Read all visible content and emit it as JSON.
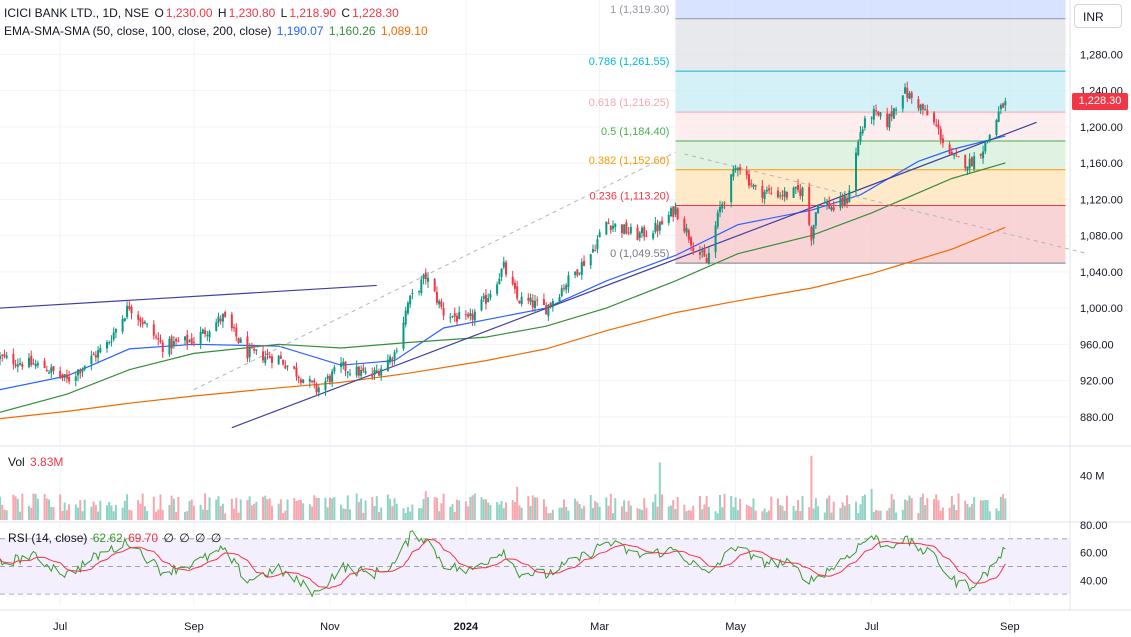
{
  "header": {
    "symbol": "ICICI BANK LTD., 1D, NSE",
    "open_label": "O",
    "open": "1,230.00",
    "high_label": "H",
    "high": "1,230.80",
    "low_label": "L",
    "low": "1,218.90",
    "close_label": "C",
    "close": "1,228.30",
    "indicator_name": "EMA-SMA-SMA (50, close, 100, close, 200, close)",
    "ma50": "1,190.07",
    "ma100": "1,160.26",
    "ma200": "1,089.10"
  },
  "currency": "INR",
  "last_price": "1,228.30",
  "volume_panel": {
    "label": "Vol",
    "value": "3.83M",
    "axis_label": "40 M"
  },
  "rsi_panel": {
    "label": "RSI (14, close)",
    "rsi": "62.62",
    "ma": "69.70",
    "placeholders": [
      "∅",
      "∅",
      "∅",
      "∅"
    ]
  },
  "colors": {
    "up": "#089981",
    "down": "#f23645",
    "ma50": "#2962ff",
    "ma100": "#388e3c",
    "ma200": "#ef6c00",
    "trend": "#3f3f9f",
    "rsi": "#3a9a2e",
    "rsi_ma": "#f23645"
  },
  "chart_data": {
    "type": "candlestick",
    "price_axis": {
      "range": [
        850,
        1340
      ],
      "ticks": [
        "880.00",
        "920.00",
        "960.00",
        "1,000.00",
        "1,040.00",
        "1,080.00",
        "1,120.00",
        "1,160.00",
        "1,200.00",
        "1,240.00",
        "1,280.00"
      ]
    },
    "time_axis": {
      "range": [
        "2023-06-06",
        "2024-09-28"
      ],
      "ticks": [
        {
          "label": "Jul",
          "date": "2023-07-03"
        },
        {
          "label": "Sep",
          "date": "2023-09-01"
        },
        {
          "label": "Nov",
          "date": "2023-11-01"
        },
        {
          "label": "2024",
          "date": "2024-01-01"
        },
        {
          "label": "Mar",
          "date": "2024-03-01"
        },
        {
          "label": "May",
          "date": "2024-05-01"
        },
        {
          "label": "Jul",
          "date": "2024-07-01"
        },
        {
          "label": "Sep",
          "date": "2024-09-01"
        }
      ]
    },
    "price_keypoints": [
      {
        "date": "2023-06-06",
        "close": 945
      },
      {
        "date": "2023-06-26",
        "close": 935
      },
      {
        "date": "2023-07-06",
        "close": 920
      },
      {
        "date": "2023-07-24",
        "close": 960
      },
      {
        "date": "2023-08-03",
        "close": 1003
      },
      {
        "date": "2023-08-18",
        "close": 958
      },
      {
        "date": "2023-09-01",
        "close": 965
      },
      {
        "date": "2023-09-14",
        "close": 990
      },
      {
        "date": "2023-09-25",
        "close": 950
      },
      {
        "date": "2023-10-09",
        "close": 945
      },
      {
        "date": "2023-10-26",
        "close": 910
      },
      {
        "date": "2023-11-06",
        "close": 935
      },
      {
        "date": "2023-11-20",
        "close": 925
      },
      {
        "date": "2023-11-30",
        "close": 950
      },
      {
        "date": "2023-12-06",
        "close": 1005
      },
      {
        "date": "2023-12-14",
        "close": 1035
      },
      {
        "date": "2023-12-22",
        "close": 995
      },
      {
        "date": "2024-01-02",
        "close": 985
      },
      {
        "date": "2024-01-10",
        "close": 1010
      },
      {
        "date": "2024-01-18",
        "close": 1045
      },
      {
        "date": "2024-01-24",
        "close": 1010
      },
      {
        "date": "2024-02-06",
        "close": 1000
      },
      {
        "date": "2024-02-14",
        "close": 1025
      },
      {
        "date": "2024-02-26",
        "close": 1060
      },
      {
        "date": "2024-03-04",
        "close": 1095
      },
      {
        "date": "2024-03-18",
        "close": 1080
      },
      {
        "date": "2024-03-28",
        "close": 1090
      },
      {
        "date": "2024-04-04",
        "close": 1110
      },
      {
        "date": "2024-04-12",
        "close": 1070
      },
      {
        "date": "2024-04-18",
        "close": 1050
      },
      {
        "date": "2024-04-24",
        "close": 1110
      },
      {
        "date": "2024-05-02",
        "close": 1160
      },
      {
        "date": "2024-05-10",
        "close": 1130
      },
      {
        "date": "2024-05-24",
        "close": 1125
      },
      {
        "date": "2024-05-31",
        "close": 1130
      },
      {
        "date": "2024-06-04",
        "close": 1080
      },
      {
        "date": "2024-06-07",
        "close": 1120
      },
      {
        "date": "2024-06-14",
        "close": 1110
      },
      {
        "date": "2024-06-20",
        "close": 1120
      },
      {
        "date": "2024-06-26",
        "close": 1195
      },
      {
        "date": "2024-07-01",
        "close": 1215
      },
      {
        "date": "2024-07-08",
        "close": 1205
      },
      {
        "date": "2024-07-15",
        "close": 1240
      },
      {
        "date": "2024-07-22",
        "close": 1225
      },
      {
        "date": "2024-07-30",
        "close": 1200
      },
      {
        "date": "2024-08-06",
        "close": 1165
      },
      {
        "date": "2024-08-14",
        "close": 1160
      },
      {
        "date": "2024-08-21",
        "close": 1180
      },
      {
        "date": "2024-08-27",
        "close": 1215
      },
      {
        "date": "2024-08-30",
        "close": 1228.3
      }
    ],
    "ma_lines": [
      {
        "name": "EMA 50",
        "points": [
          {
            "date": "2023-06-06",
            "value": 910
          },
          {
            "date": "2023-07-06",
            "value": 925
          },
          {
            "date": "2023-08-03",
            "value": 955
          },
          {
            "date": "2023-09-01",
            "value": 960
          },
          {
            "date": "2023-10-09",
            "value": 958
          },
          {
            "date": "2023-11-06",
            "value": 937
          },
          {
            "date": "2023-11-30",
            "value": 942
          },
          {
            "date": "2023-12-22",
            "value": 978
          },
          {
            "date": "2024-02-06",
            "value": 1000
          },
          {
            "date": "2024-03-04",
            "value": 1030
          },
          {
            "date": "2024-04-04",
            "value": 1058
          },
          {
            "date": "2024-05-02",
            "value": 1092
          },
          {
            "date": "2024-06-04",
            "value": 1108
          },
          {
            "date": "2024-06-26",
            "value": 1125
          },
          {
            "date": "2024-07-22",
            "value": 1162
          },
          {
            "date": "2024-08-06",
            "value": 1175
          },
          {
            "date": "2024-08-30",
            "value": 1190.07
          }
        ]
      },
      {
        "name": "SMA 100",
        "points": [
          {
            "date": "2023-06-06",
            "value": 885
          },
          {
            "date": "2023-07-06",
            "value": 905
          },
          {
            "date": "2023-08-03",
            "value": 932
          },
          {
            "date": "2023-09-01",
            "value": 950
          },
          {
            "date": "2023-10-09",
            "value": 960
          },
          {
            "date": "2023-11-06",
            "value": 956
          },
          {
            "date": "2023-12-06",
            "value": 962
          },
          {
            "date": "2024-01-10",
            "value": 968
          },
          {
            "date": "2024-02-06",
            "value": 980
          },
          {
            "date": "2024-03-04",
            "value": 1000
          },
          {
            "date": "2024-04-04",
            "value": 1030
          },
          {
            "date": "2024-05-02",
            "value": 1060
          },
          {
            "date": "2024-06-04",
            "value": 1080
          },
          {
            "date": "2024-07-01",
            "value": 1105
          },
          {
            "date": "2024-08-06",
            "value": 1143
          },
          {
            "date": "2024-08-30",
            "value": 1160.26
          }
        ]
      },
      {
        "name": "SMA 200",
        "points": [
          {
            "date": "2023-06-06",
            "value": 878
          },
          {
            "date": "2023-07-06",
            "value": 886
          },
          {
            "date": "2023-08-03",
            "value": 895
          },
          {
            "date": "2023-09-01",
            "value": 903
          },
          {
            "date": "2023-10-09",
            "value": 912
          },
          {
            "date": "2023-11-06",
            "value": 918
          },
          {
            "date": "2023-12-06",
            "value": 928
          },
          {
            "date": "2024-01-10",
            "value": 942
          },
          {
            "date": "2024-02-06",
            "value": 955
          },
          {
            "date": "2024-03-04",
            "value": 975
          },
          {
            "date": "2024-04-04",
            "value": 995
          },
          {
            "date": "2024-05-02",
            "value": 1008
          },
          {
            "date": "2024-06-04",
            "value": 1022
          },
          {
            "date": "2024-07-01",
            "value": 1038
          },
          {
            "date": "2024-08-06",
            "value": 1065
          },
          {
            "date": "2024-08-30",
            "value": 1089.1
          }
        ]
      }
    ],
    "trend_lines": [
      {
        "name": "upper-channel",
        "from": {
          "date": "2023-06-06",
          "value": 1000
        },
        "to": {
          "date": "2023-11-22",
          "value": 1025
        }
      },
      {
        "name": "rising-support",
        "from": {
          "date": "2023-09-18",
          "value": 868
        },
        "to": {
          "date": "2024-09-13",
          "value": 1205
        }
      },
      {
        "name": "fib-anchor-dashed",
        "from": {
          "date": "2023-09-01",
          "value": 910
        },
        "to": {
          "date": "2024-04-04",
          "value": 1172
        }
      },
      {
        "name": "falling-dashed",
        "from": {
          "date": "2024-04-08",
          "value": 1170
        },
        "to": {
          "date": "2024-10-06",
          "value": 1060
        }
      }
    ],
    "fibonacci": {
      "start_date": "2024-04-04",
      "end_date": "2024-09-26",
      "levels": [
        {
          "ratio": "0",
          "value": 1049.55,
          "label": "0 (1,049.55)",
          "color": "#787b86"
        },
        {
          "ratio": "0.236",
          "value": 1113.2,
          "label": "0.236 (1,113.20)",
          "color": "#f23645"
        },
        {
          "ratio": "0.382",
          "value": 1152.6,
          "label": "0.382 (1,152.60)",
          "color": "#ff9800"
        },
        {
          "ratio": "0.5",
          "value": 1184.4,
          "label": "0.5 (1,184.40)",
          "color": "#4caf50"
        },
        {
          "ratio": "0.618",
          "value": 1216.25,
          "label": "0.618 (1,216.25)",
          "color": "#f7a8ae"
        },
        {
          "ratio": "0.786",
          "value": 1261.55,
          "label": "0.786 (1,261.55)",
          "color": "#00bcd4"
        },
        {
          "ratio": "1",
          "value": 1319.3,
          "label": "1 (1,319.30)",
          "color": "#9598a1"
        }
      ]
    },
    "volume": {
      "range": [
        0,
        65
      ],
      "unit": "M",
      "spikes": [
        {
          "date": "2024-03-28",
          "value": 52
        },
        {
          "date": "2024-06-04",
          "value": 58
        },
        {
          "date": "2023-12-14",
          "value": 26
        },
        {
          "date": "2024-01-24",
          "value": 30
        },
        {
          "date": "2024-07-01",
          "value": 28
        }
      ]
    },
    "rsi": {
      "range": [
        25,
        80
      ],
      "ticks": [
        "40.00",
        "60.00",
        "80.00"
      ],
      "bands": [
        30,
        50,
        70
      ],
      "keypoints": [
        {
          "date": "2023-06-06",
          "value": 52
        },
        {
          "date": "2023-06-20",
          "value": 58
        },
        {
          "date": "2023-07-06",
          "value": 44
        },
        {
          "date": "2023-07-20",
          "value": 58
        },
        {
          "date": "2023-08-03",
          "value": 68
        },
        {
          "date": "2023-08-18",
          "value": 46
        },
        {
          "date": "2023-09-01",
          "value": 52
        },
        {
          "date": "2023-09-14",
          "value": 62
        },
        {
          "date": "2023-09-25",
          "value": 40
        },
        {
          "date": "2023-10-09",
          "value": 48
        },
        {
          "date": "2023-10-26",
          "value": 30
        },
        {
          "date": "2023-11-06",
          "value": 50
        },
        {
          "date": "2023-11-20",
          "value": 44
        },
        {
          "date": "2023-11-30",
          "value": 52
        },
        {
          "date": "2023-12-08",
          "value": 74
        },
        {
          "date": "2023-12-14",
          "value": 70
        },
        {
          "date": "2023-12-22",
          "value": 52
        },
        {
          "date": "2024-01-02",
          "value": 46
        },
        {
          "date": "2024-01-18",
          "value": 62
        },
        {
          "date": "2024-01-24",
          "value": 46
        },
        {
          "date": "2024-02-06",
          "value": 44
        },
        {
          "date": "2024-02-26",
          "value": 60
        },
        {
          "date": "2024-03-04",
          "value": 68
        },
        {
          "date": "2024-03-18",
          "value": 58
        },
        {
          "date": "2024-04-04",
          "value": 62
        },
        {
          "date": "2024-04-18",
          "value": 44
        },
        {
          "date": "2024-05-02",
          "value": 66
        },
        {
          "date": "2024-05-10",
          "value": 54
        },
        {
          "date": "2024-05-24",
          "value": 52
        },
        {
          "date": "2024-06-04",
          "value": 40
        },
        {
          "date": "2024-06-14",
          "value": 50
        },
        {
          "date": "2024-06-26",
          "value": 66
        },
        {
          "date": "2024-07-01",
          "value": 72
        },
        {
          "date": "2024-07-08",
          "value": 64
        },
        {
          "date": "2024-07-15",
          "value": 70
        },
        {
          "date": "2024-07-30",
          "value": 56
        },
        {
          "date": "2024-08-06",
          "value": 40
        },
        {
          "date": "2024-08-14",
          "value": 36
        },
        {
          "date": "2024-08-21",
          "value": 44
        },
        {
          "date": "2024-08-30",
          "value": 62.62
        }
      ]
    }
  }
}
